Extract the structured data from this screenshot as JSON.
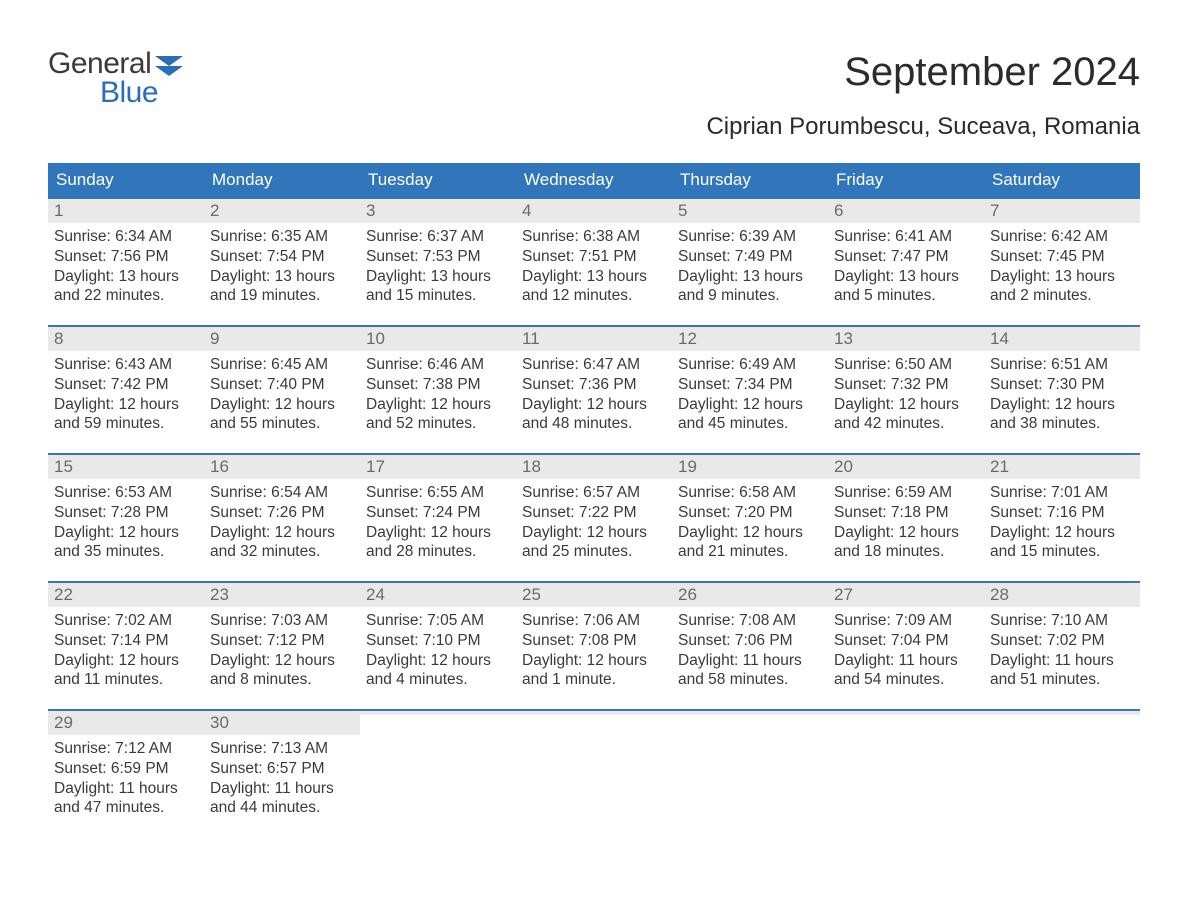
{
  "brand": {
    "word1": "General",
    "word2": "Blue",
    "color_general": "#3a3a3a",
    "color_blue": "#2a6db8",
    "flag_color": "#2a6db8"
  },
  "title": "September 2024",
  "location": "Ciprian Porumbescu, Suceava, Romania",
  "colors": {
    "header_bg": "#3176bb",
    "header_text": "#ffffff",
    "daynum_bg": "#e9e9e9",
    "daynum_text": "#6a6a6a",
    "body_text": "#3a3a3a",
    "week_border": "#3176bb",
    "page_bg": "#ffffff"
  },
  "typography": {
    "title_fontsize": 40,
    "location_fontsize": 24,
    "weekday_fontsize": 17,
    "body_fontsize": 15.5
  },
  "weekdays": [
    "Sunday",
    "Monday",
    "Tuesday",
    "Wednesday",
    "Thursday",
    "Friday",
    "Saturday"
  ],
  "weeks": [
    [
      {
        "n": "1",
        "sunrise": "Sunrise: 6:34 AM",
        "sunset": "Sunset: 7:56 PM",
        "daylight": "Daylight: 13 hours and 22 minutes."
      },
      {
        "n": "2",
        "sunrise": "Sunrise: 6:35 AM",
        "sunset": "Sunset: 7:54 PM",
        "daylight": "Daylight: 13 hours and 19 minutes."
      },
      {
        "n": "3",
        "sunrise": "Sunrise: 6:37 AM",
        "sunset": "Sunset: 7:53 PM",
        "daylight": "Daylight: 13 hours and 15 minutes."
      },
      {
        "n": "4",
        "sunrise": "Sunrise: 6:38 AM",
        "sunset": "Sunset: 7:51 PM",
        "daylight": "Daylight: 13 hours and 12 minutes."
      },
      {
        "n": "5",
        "sunrise": "Sunrise: 6:39 AM",
        "sunset": "Sunset: 7:49 PM",
        "daylight": "Daylight: 13 hours and 9 minutes."
      },
      {
        "n": "6",
        "sunrise": "Sunrise: 6:41 AM",
        "sunset": "Sunset: 7:47 PM",
        "daylight": "Daylight: 13 hours and 5 minutes."
      },
      {
        "n": "7",
        "sunrise": "Sunrise: 6:42 AM",
        "sunset": "Sunset: 7:45 PM",
        "daylight": "Daylight: 13 hours and 2 minutes."
      }
    ],
    [
      {
        "n": "8",
        "sunrise": "Sunrise: 6:43 AM",
        "sunset": "Sunset: 7:42 PM",
        "daylight": "Daylight: 12 hours and 59 minutes."
      },
      {
        "n": "9",
        "sunrise": "Sunrise: 6:45 AM",
        "sunset": "Sunset: 7:40 PM",
        "daylight": "Daylight: 12 hours and 55 minutes."
      },
      {
        "n": "10",
        "sunrise": "Sunrise: 6:46 AM",
        "sunset": "Sunset: 7:38 PM",
        "daylight": "Daylight: 12 hours and 52 minutes."
      },
      {
        "n": "11",
        "sunrise": "Sunrise: 6:47 AM",
        "sunset": "Sunset: 7:36 PM",
        "daylight": "Daylight: 12 hours and 48 minutes."
      },
      {
        "n": "12",
        "sunrise": "Sunrise: 6:49 AM",
        "sunset": "Sunset: 7:34 PM",
        "daylight": "Daylight: 12 hours and 45 minutes."
      },
      {
        "n": "13",
        "sunrise": "Sunrise: 6:50 AM",
        "sunset": "Sunset: 7:32 PM",
        "daylight": "Daylight: 12 hours and 42 minutes."
      },
      {
        "n": "14",
        "sunrise": "Sunrise: 6:51 AM",
        "sunset": "Sunset: 7:30 PM",
        "daylight": "Daylight: 12 hours and 38 minutes."
      }
    ],
    [
      {
        "n": "15",
        "sunrise": "Sunrise: 6:53 AM",
        "sunset": "Sunset: 7:28 PM",
        "daylight": "Daylight: 12 hours and 35 minutes."
      },
      {
        "n": "16",
        "sunrise": "Sunrise: 6:54 AM",
        "sunset": "Sunset: 7:26 PM",
        "daylight": "Daylight: 12 hours and 32 minutes."
      },
      {
        "n": "17",
        "sunrise": "Sunrise: 6:55 AM",
        "sunset": "Sunset: 7:24 PM",
        "daylight": "Daylight: 12 hours and 28 minutes."
      },
      {
        "n": "18",
        "sunrise": "Sunrise: 6:57 AM",
        "sunset": "Sunset: 7:22 PM",
        "daylight": "Daylight: 12 hours and 25 minutes."
      },
      {
        "n": "19",
        "sunrise": "Sunrise: 6:58 AM",
        "sunset": "Sunset: 7:20 PM",
        "daylight": "Daylight: 12 hours and 21 minutes."
      },
      {
        "n": "20",
        "sunrise": "Sunrise: 6:59 AM",
        "sunset": "Sunset: 7:18 PM",
        "daylight": "Daylight: 12 hours and 18 minutes."
      },
      {
        "n": "21",
        "sunrise": "Sunrise: 7:01 AM",
        "sunset": "Sunset: 7:16 PM",
        "daylight": "Daylight: 12 hours and 15 minutes."
      }
    ],
    [
      {
        "n": "22",
        "sunrise": "Sunrise: 7:02 AM",
        "sunset": "Sunset: 7:14 PM",
        "daylight": "Daylight: 12 hours and 11 minutes."
      },
      {
        "n": "23",
        "sunrise": "Sunrise: 7:03 AM",
        "sunset": "Sunset: 7:12 PM",
        "daylight": "Daylight: 12 hours and 8 minutes."
      },
      {
        "n": "24",
        "sunrise": "Sunrise: 7:05 AM",
        "sunset": "Sunset: 7:10 PM",
        "daylight": "Daylight: 12 hours and 4 minutes."
      },
      {
        "n": "25",
        "sunrise": "Sunrise: 7:06 AM",
        "sunset": "Sunset: 7:08 PM",
        "daylight": "Daylight: 12 hours and 1 minute."
      },
      {
        "n": "26",
        "sunrise": "Sunrise: 7:08 AM",
        "sunset": "Sunset: 7:06 PM",
        "daylight": "Daylight: 11 hours and 58 minutes."
      },
      {
        "n": "27",
        "sunrise": "Sunrise: 7:09 AM",
        "sunset": "Sunset: 7:04 PM",
        "daylight": "Daylight: 11 hours and 54 minutes."
      },
      {
        "n": "28",
        "sunrise": "Sunrise: 7:10 AM",
        "sunset": "Sunset: 7:02 PM",
        "daylight": "Daylight: 11 hours and 51 minutes."
      }
    ],
    [
      {
        "n": "29",
        "sunrise": "Sunrise: 7:12 AM",
        "sunset": "Sunset: 6:59 PM",
        "daylight": "Daylight: 11 hours and 47 minutes."
      },
      {
        "n": "30",
        "sunrise": "Sunrise: 7:13 AM",
        "sunset": "Sunset: 6:57 PM",
        "daylight": "Daylight: 11 hours and 44 minutes."
      },
      {
        "empty": true
      },
      {
        "empty": true
      },
      {
        "empty": true
      },
      {
        "empty": true
      },
      {
        "empty": true
      }
    ]
  ]
}
